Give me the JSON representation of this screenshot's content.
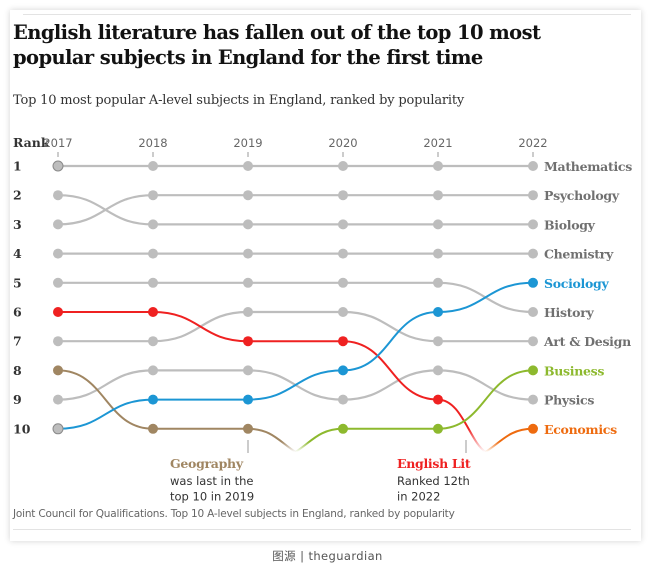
{
  "title": "English literature has fallen out of the top 10 most popular subjects in England for the first time",
  "subtitle": "Top 10 most popular A-level subjects in England, ranked by popularity",
  "source": "Joint Council for Qualifications. Top 10 A-level subjects in England, ranked by popularity",
  "credit": "图源 | theguardian",
  "chart_data": {
    "type": "line",
    "chart_kind": "bump",
    "title": "English literature has fallen out of the top 10 most popular subjects in England for the first time",
    "subtitle": "Top 10 most popular A-level subjects in England, ranked by popularity",
    "ylabel": "Rank",
    "x": [
      "2017",
      "2018",
      "2019",
      "2020",
      "2021",
      "2022"
    ],
    "rank_labels": [
      "1",
      "2",
      "3",
      "4",
      "5",
      "6",
      "7",
      "8",
      "9",
      "10"
    ],
    "ylim": [
      1,
      10
    ],
    "y_inverted": true,
    "series": [
      {
        "name": "Mathematics",
        "color": "#bdbdbd",
        "label_color": "#707070",
        "values": [
          1,
          1,
          1,
          1,
          1,
          1
        ]
      },
      {
        "name": "Psychology",
        "color": "#bdbdbd",
        "label_color": "#707070",
        "values": [
          3,
          2,
          2,
          2,
          2,
          2
        ]
      },
      {
        "name": "Biology",
        "color": "#bdbdbd",
        "label_color": "#707070",
        "values": [
          2,
          3,
          3,
          3,
          3,
          3
        ]
      },
      {
        "name": "Chemistry",
        "color": "#bdbdbd",
        "label_color": "#707070",
        "values": [
          4,
          4,
          4,
          4,
          4,
          4
        ]
      },
      {
        "name": "History",
        "color": "#bdbdbd",
        "label_color": "#707070",
        "values": [
          5,
          5,
          5,
          5,
          5,
          6
        ]
      },
      {
        "name": "Art & Design",
        "color": "#bdbdbd",
        "label_color": "#707070",
        "values": [
          7,
          7,
          6,
          6,
          7,
          7
        ]
      },
      {
        "name": "Physics",
        "color": "#bdbdbd",
        "label_color": "#707070",
        "values": [
          9,
          8,
          8,
          9,
          8,
          9
        ]
      },
      {
        "name": "Geography",
        "color": "#a08662",
        "label_color": "#a08662",
        "values": [
          8,
          10,
          10,
          null,
          null,
          null
        ],
        "exit_after": 2
      },
      {
        "name": "English Lit",
        "color": "#ef2121",
        "label_color": "#ef2121",
        "values": [
          6,
          6,
          7,
          7,
          9,
          12
        ],
        "exit_after": 4
      },
      {
        "name": "Sociology",
        "color": "#1c96d4",
        "label_color": "#1c96d4",
        "values": [
          10,
          9,
          9,
          8,
          6,
          5
        ]
      },
      {
        "name": "Business",
        "color": "#8db92e",
        "label_color": "#8db92e",
        "values": [
          null,
          null,
          null,
          10,
          10,
          8
        ],
        "enter_before": 3
      },
      {
        "name": "Economics",
        "color": "#ee6b0f",
        "label_color": "#ee6b0f",
        "values": [
          null,
          null,
          null,
          null,
          null,
          10
        ],
        "enter_before": 5
      }
    ],
    "annotations": [
      {
        "target": "Geography",
        "year": "2019",
        "title": "Geography",
        "lines": [
          "was last in the",
          "top 10 in 2019"
        ]
      },
      {
        "target": "English Lit",
        "year": "2021",
        "title": "English Lit",
        "lines": [
          "Ranked 12th",
          "in 2022"
        ]
      }
    ],
    "grid": false
  }
}
